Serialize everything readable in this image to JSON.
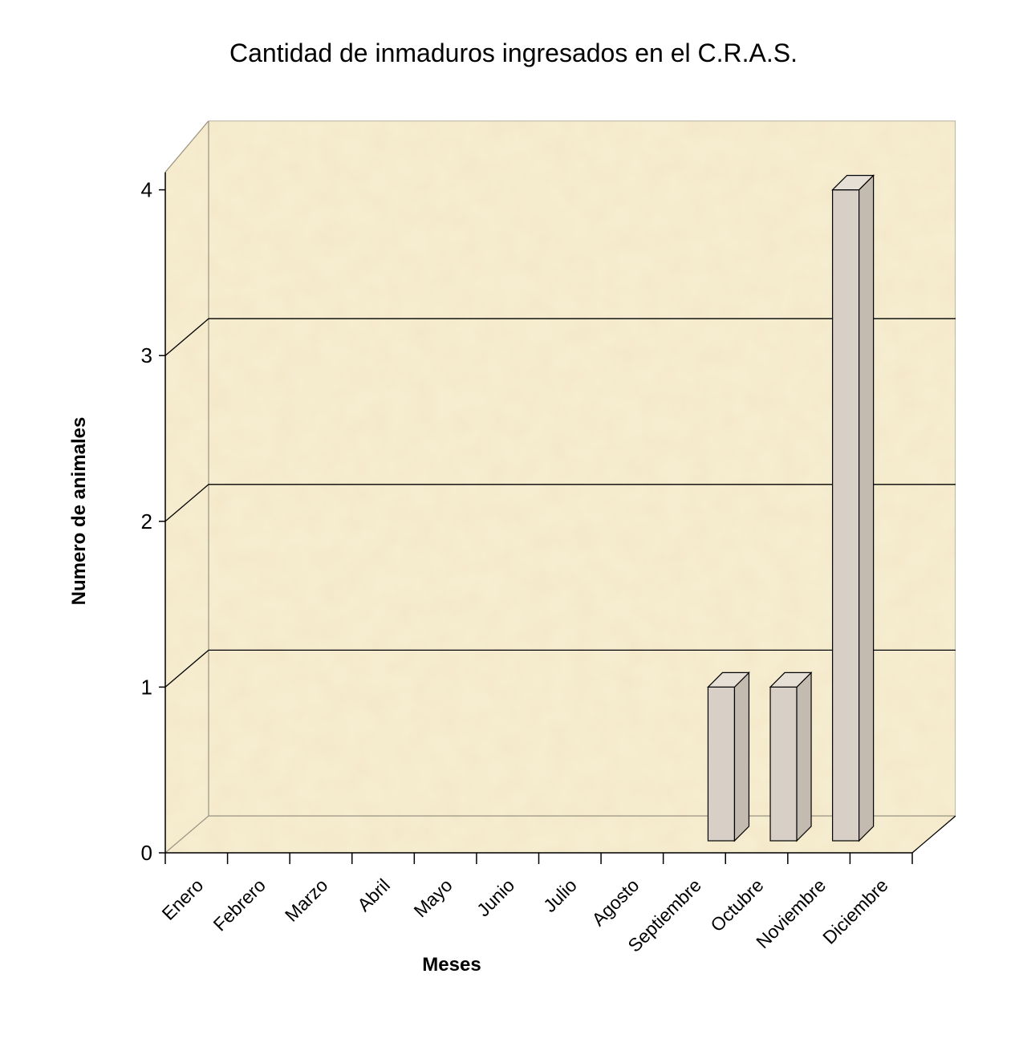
{
  "chart_data": {
    "type": "bar",
    "title": "Cantidad de inmaduros ingresados en el C.R.A.S.",
    "xlabel": "Meses",
    "ylabel": "Numero de animales",
    "categories": [
      "Enero",
      "Febrero",
      "Marzo",
      "Abril",
      "Mayo",
      "Junio",
      "Julio",
      "Agosto",
      "Septiembre",
      "Octubre",
      "Noviembre",
      "Diciembre"
    ],
    "values": [
      0,
      0,
      0,
      0,
      0,
      0,
      0,
      0,
      1,
      1,
      4,
      0
    ],
    "ylim": [
      0,
      4
    ],
    "yticks": [
      0,
      1,
      2,
      3,
      4
    ],
    "grid": true,
    "legend": "none",
    "style": "3d-column",
    "colors": {
      "background": "#f7eed3",
      "bar_front": "#d8d0c6",
      "bar_side": "#c4bbb0",
      "bar_top": "#e6dfd6"
    }
  }
}
